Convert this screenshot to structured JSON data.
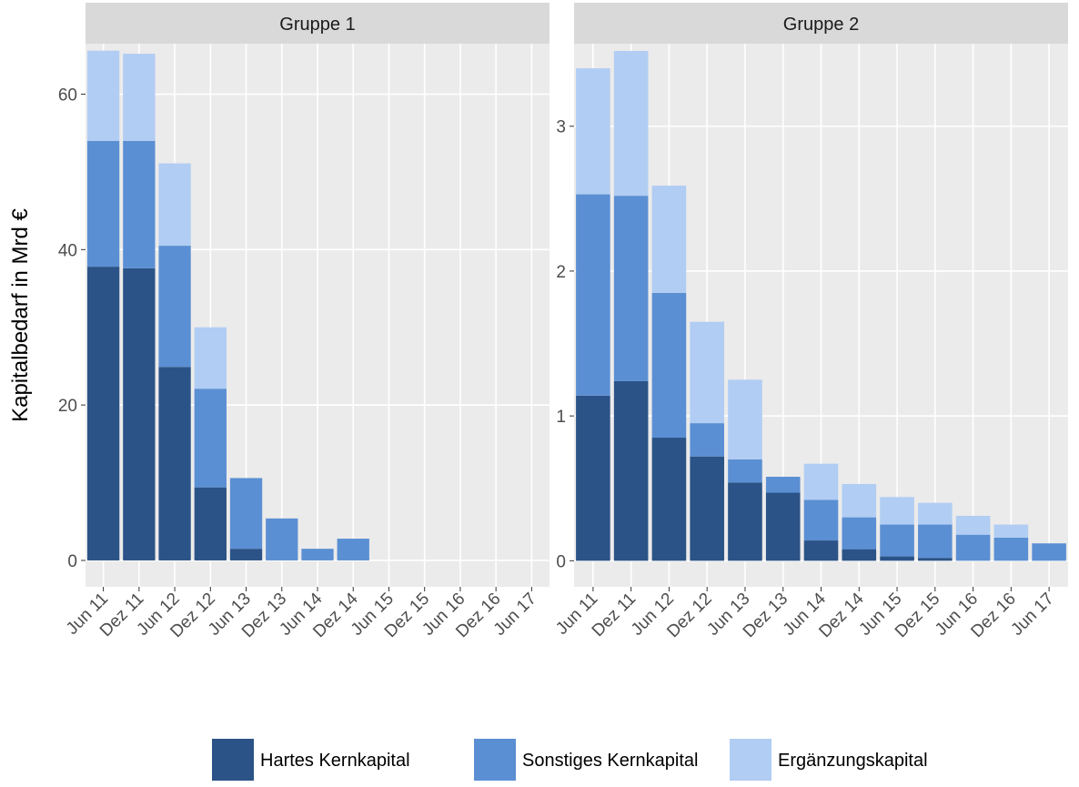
{
  "chart_data": [
    {
      "type": "bar",
      "stacked": true,
      "title": "Gruppe 1",
      "y_label": "Kapitalbedarf in Mrd €",
      "categories": [
        "Jun 11",
        "Dez 11",
        "Jun 12",
        "Dez 12",
        "Jun 13",
        "Dez 13",
        "Jun 14",
        "Dez 14",
        "Jun 15",
        "Dez 15",
        "Jun 16",
        "Dez 16",
        "Jun 17"
      ],
      "series": [
        {
          "name": "Hartes Kernkapital",
          "color": "#2b5387",
          "values": [
            37.8,
            37.6,
            24.9,
            9.4,
            1.5,
            0,
            0,
            0,
            0,
            0,
            0,
            0,
            0
          ]
        },
        {
          "name": "Sonstiges Kernkapital",
          "color": "#5b8fd3",
          "values": [
            16.2,
            16.4,
            15.6,
            12.7,
            9.1,
            5.4,
            1.5,
            2.8,
            0,
            0,
            0,
            0,
            0
          ]
        },
        {
          "name": "Ergänzungskapital",
          "color": "#b1cdf3",
          "values": [
            11.6,
            11.2,
            10.6,
            7.9,
            0,
            0,
            0,
            0,
            0,
            0,
            0,
            0,
            0
          ]
        }
      ],
      "ylim": [
        -3.4,
        66.5
      ],
      "yticks": [
        0,
        20,
        40,
        60
      ],
      "grid": true
    },
    {
      "type": "bar",
      "stacked": true,
      "title": "Gruppe 2",
      "categories": [
        "Jun 11",
        "Dez 11",
        "Jun 12",
        "Dez 12",
        "Jun 13",
        "Dez 13",
        "Jun 14",
        "Dez 14",
        "Jun 15",
        "Dez 15",
        "Jun 16",
        "Dez 16",
        "Jun 17"
      ],
      "series": [
        {
          "name": "Hartes Kernkapital",
          "color": "#2b5387",
          "values": [
            1.14,
            1.24,
            0.85,
            0.72,
            0.54,
            0.47,
            0.14,
            0.08,
            0.03,
            0.02,
            0,
            0,
            0
          ]
        },
        {
          "name": "Sonstiges Kernkapital",
          "color": "#5b8fd3",
          "values": [
            1.39,
            1.28,
            1.0,
            0.23,
            0.16,
            0.11,
            0.28,
            0.22,
            0.22,
            0.23,
            0.18,
            0.16,
            0.12
          ]
        },
        {
          "name": "Ergänzungskapital",
          "color": "#b1cdf3",
          "values": [
            0.87,
            1.0,
            0.74,
            0.7,
            0.55,
            0,
            0.25,
            0.23,
            0.19,
            0.15,
            0.13,
            0.09,
            0
          ]
        }
      ],
      "ylim": [
        -0.18,
        3.57
      ],
      "yticks": [
        0,
        1,
        2,
        3
      ],
      "grid": true
    }
  ]
}
